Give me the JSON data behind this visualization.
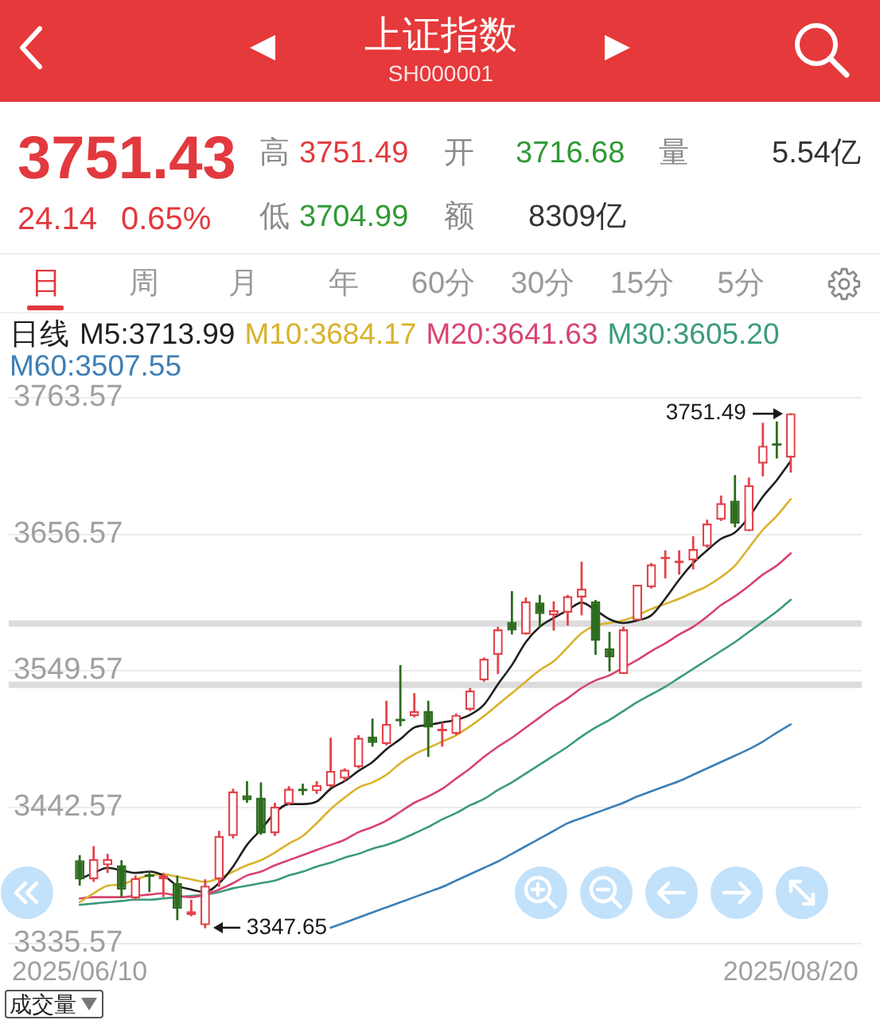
{
  "chart_data": {
    "type": "candlestick",
    "title": "上证指数",
    "subtitle": "SH000001",
    "categories": [
      "2025/06/10",
      null,
      null,
      null,
      null,
      null,
      null,
      null,
      null,
      null,
      null,
      null,
      null,
      null,
      null,
      null,
      null,
      null,
      null,
      null,
      null,
      null,
      null,
      null,
      null,
      null,
      null,
      null,
      null,
      null,
      null,
      null,
      null,
      null,
      null,
      null,
      null,
      null,
      null,
      null,
      null,
      null,
      null,
      null,
      null,
      null,
      null,
      null,
      null,
      null,
      null,
      "2025/08/20"
    ],
    "ohlc": [
      [
        3401,
        3405,
        3381,
        3386
      ],
      [
        3386,
        3412,
        3384,
        3402
      ],
      [
        3397,
        3406,
        3391,
        3402
      ],
      [
        3397,
        3401,
        3372,
        3378
      ],
      [
        3371,
        3389,
        3370,
        3387
      ],
      [
        3389,
        3393,
        3376,
        3388
      ],
      [
        3386,
        3391,
        3372,
        3389
      ],
      [
        3383,
        3389,
        3354,
        3363
      ],
      [
        3358,
        3370,
        3357,
        3361
      ],
      [
        3350,
        3386,
        3347.65,
        3381
      ],
      [
        3386,
        3424,
        3380,
        3420
      ],
      [
        3420,
        3457,
        3418,
        3455
      ],
      [
        3452,
        3463,
        3446,
        3448
      ],
      [
        3450,
        3462,
        3421,
        3422
      ],
      [
        3422,
        3446,
        3420,
        3443
      ],
      [
        3445,
        3459,
        3444,
        3457
      ],
      [
        3457,
        3461,
        3452,
        3455
      ],
      [
        3455,
        3463,
        3453,
        3460
      ],
      [
        3459,
        3497,
        3458,
        3471
      ],
      [
        3465,
        3473,
        3463,
        3472
      ],
      [
        3474,
        3499,
        3473,
        3497
      ],
      [
        3498,
        3512,
        3490,
        3493
      ],
      [
        3492,
        3526,
        3491,
        3508
      ],
      [
        3511,
        3554,
        3506,
        3510
      ],
      [
        3514,
        3532,
        3513,
        3518
      ],
      [
        3518,
        3526,
        3482,
        3505
      ],
      [
        3503,
        3509,
        3490,
        3504
      ],
      [
        3500,
        3516,
        3499,
        3515
      ],
      [
        3519,
        3536,
        3518,
        3534
      ],
      [
        3542,
        3560,
        3541,
        3559
      ],
      [
        3562,
        3584,
        3547,
        3582
      ],
      [
        3588,
        3612,
        3578,
        3581
      ],
      [
        3578,
        3607,
        3578,
        3604
      ],
      [
        3603,
        3609,
        3584,
        3594
      ],
      [
        3593,
        3604,
        3581,
        3597
      ],
      [
        3595,
        3609,
        3585,
        3608
      ],
      [
        3607,
        3635,
        3593,
        3614
      ],
      [
        3604,
        3605,
        3562,
        3573
      ],
      [
        3567,
        3580,
        3549,
        3560
      ],
      [
        3547,
        3584,
        3547,
        3582
      ],
      [
        3589,
        3617,
        3589,
        3617
      ],
      [
        3615,
        3634,
        3614,
        3633
      ],
      [
        3637,
        3644,
        3622,
        3639
      ],
      [
        3634,
        3644,
        3625,
        3636
      ],
      [
        3636,
        3655,
        3629,
        3645
      ],
      [
        3647,
        3668,
        3646,
        3665
      ],
      [
        3668,
        3687,
        3667,
        3681
      ],
      [
        3683,
        3703,
        3662,
        3665
      ],
      [
        3659,
        3701,
        3659,
        3695
      ],
      [
        3712,
        3744,
        3702,
        3726
      ],
      [
        3727,
        3745,
        3716,
        3726
      ],
      [
        3716.68,
        3751.49,
        3704.99,
        3751.43
      ]
    ],
    "colors": [
      "#2e6b1f",
      "#e4424a",
      "#e4424a",
      "#2e6b1f",
      "#e4424a",
      "#2e6b1f",
      "#e4424a",
      "#2e6b1f",
      "#e4424a",
      "#e4424a",
      "#e4424a",
      "#e4424a",
      "#2e6b1f",
      "#2e6b1f",
      "#e4424a",
      "#e4424a",
      "#2e6b1f",
      "#e4424a",
      "#e4424a",
      "#e4424a",
      "#e4424a",
      "#2e6b1f",
      "#e4424a",
      "#2e6b1f",
      "#e4424a",
      "#2e6b1f",
      "#e4424a",
      "#e4424a",
      "#e4424a",
      "#e4424a",
      "#e4424a",
      "#2e6b1f",
      "#e4424a",
      "#2e6b1f",
      "#e4424a",
      "#e4424a",
      "#e4424a",
      "#2e6b1f",
      "#2e6b1f",
      "#e4424a",
      "#e4424a",
      "#e4424a",
      "#e4424a",
      "#e4424a",
      "#e4424a",
      "#e4424a",
      "#e4424a",
      "#2e6b1f",
      "#e4424a",
      "#e4424a",
      "#2e6b1f",
      "#e4424a"
    ],
    "series": [
      {
        "name": "M5:3713.99",
        "type": "line",
        "color": "#1f1f1f",
        "values": [
          3386,
          3391,
          3395,
          3393,
          3391,
          3392,
          3389,
          3381,
          3378,
          3376,
          3383,
          3396,
          3413,
          3425,
          3438,
          3445,
          3445,
          3447,
          3457,
          3463,
          3471,
          3478,
          3488,
          3496,
          3505,
          3507,
          3509,
          3511,
          3515,
          3523,
          3539,
          3554,
          3572,
          3584,
          3591,
          3597,
          3603,
          3597,
          3590,
          3587,
          3589,
          3593,
          3606,
          3621,
          3634,
          3644,
          3653,
          3658,
          3670,
          3686,
          3699,
          3713.99
        ]
      },
      {
        "name": "M10:3684.17",
        "type": "line",
        "color": "#d9b22b",
        "values": [
          3368,
          3375,
          3381,
          3382,
          3386,
          3389,
          3390,
          3388,
          3386,
          3384,
          3387,
          3392,
          3397,
          3401,
          3407,
          3414,
          3420,
          3430,
          3441,
          3450,
          3458,
          3462,
          3468,
          3477,
          3484,
          3489,
          3494,
          3499,
          3506,
          3514,
          3523,
          3532,
          3541,
          3550,
          3557,
          3568,
          3579,
          3585,
          3587,
          3589,
          3593,
          3598,
          3602,
          3606,
          3611,
          3616,
          3623,
          3632,
          3646,
          3660,
          3671,
          3684.17
        ]
      },
      {
        "name": "M20:3641.63",
        "type": "line",
        "color": "#d8436f",
        "values": [
          3371,
          3372,
          3372,
          3372,
          3373,
          3374,
          3375,
          3373,
          3372,
          3374,
          3378,
          3383,
          3389,
          3392,
          3397,
          3401,
          3405,
          3409,
          3413,
          3417,
          3423,
          3427,
          3432,
          3439,
          3446,
          3451,
          3457,
          3465,
          3473,
          3482,
          3490,
          3497,
          3505,
          3513,
          3521,
          3528,
          3536,
          3542,
          3546,
          3552,
          3558,
          3565,
          3571,
          3578,
          3584,
          3592,
          3601,
          3608,
          3616,
          3625,
          3632,
          3641.63
        ]
      },
      {
        "name": "M30:3605.20",
        "type": "line",
        "color": "#3a9b7b",
        "values": [
          3366,
          3367,
          3368,
          3369,
          3370,
          3370,
          3371,
          3372,
          3373,
          3374,
          3376,
          3379,
          3381,
          3383,
          3385,
          3389,
          3392,
          3396,
          3399,
          3403,
          3406,
          3410,
          3413,
          3417,
          3422,
          3427,
          3433,
          3438,
          3444,
          3449,
          3456,
          3462,
          3469,
          3476,
          3483,
          3490,
          3498,
          3505,
          3511,
          3518,
          3525,
          3531,
          3537,
          3544,
          3551,
          3558,
          3565,
          3572,
          3580,
          3588,
          3596,
          3605.2
        ]
      },
      {
        "name": "M60:3507.55",
        "type": "line",
        "color": "#3c7fb7",
        "values": [
          null,
          null,
          null,
          null,
          null,
          null,
          null,
          null,
          null,
          null,
          null,
          null,
          null,
          null,
          null,
          null,
          null,
          null,
          3348,
          3352,
          3356,
          3360,
          3364,
          3368,
          3372,
          3376,
          3380,
          3385,
          3390,
          3395,
          3400,
          3406,
          3412,
          3418,
          3424,
          3430,
          3434,
          3438,
          3442,
          3446,
          3451,
          3455,
          3459,
          3463,
          3468,
          3473,
          3478,
          3483,
          3488,
          3494,
          3501,
          3507.55
        ]
      }
    ],
    "legend": "top",
    "legend_title": "日线",
    "ylim": [
      3335.57,
      3763.57
    ],
    "yticks": [
      3335.57,
      3442.57,
      3549.57,
      3656.57,
      3763.57
    ],
    "grid": "y",
    "bands": [
      {
        "axis": "y",
        "from": 3536,
        "to": 3541,
        "color": "#dcdcdc"
      },
      {
        "axis": "y",
        "from": 3584,
        "to": 3589,
        "color": "#dcdcdc"
      }
    ],
    "annotations": [
      "3751.43",
      "24.14",
      "0.65%",
      "高",
      "3751.49",
      "开",
      "3716.68",
      "量",
      "5.54亿",
      "低",
      "3704.99",
      "额",
      "8309亿",
      "日",
      "周",
      "月",
      "年",
      "60分",
      "30分",
      "15分",
      "5分",
      "成交量",
      "3347.65",
      {
        "text": "3751.49",
        "x": "2025/08/20",
        "y": 3751.49
      }
    ]
  }
}
